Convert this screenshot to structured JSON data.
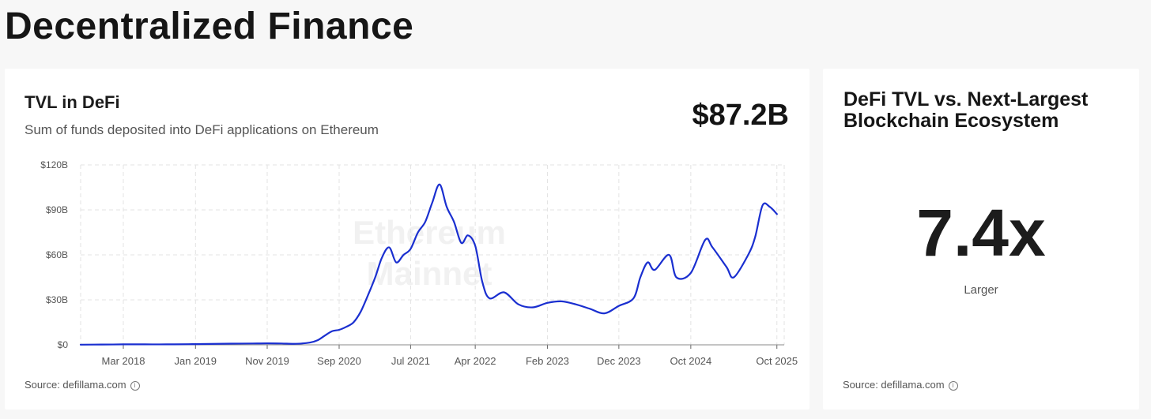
{
  "page": {
    "title": "Decentralized Finance"
  },
  "main_card": {
    "title": "TVL in DeFi",
    "subtitle": "Sum of funds deposited into DeFi applications on Ethereum",
    "value": "$87.2B",
    "watermark": [
      "Ethereum",
      "Mainnet"
    ],
    "source": "Source: defillama.com"
  },
  "side_card": {
    "title": "DeFi TVL vs. Next-Largest Blockchain Ecosystem",
    "value": "7.4x",
    "label": "Larger",
    "source": "Source: defillama.com"
  },
  "colors": {
    "line": "#1a2fd0",
    "grid": "#e3e3e3",
    "tick": "#555555"
  },
  "icons": {
    "info": "info-circle-icon"
  },
  "chart_data": {
    "type": "line",
    "title": "TVL in DeFi",
    "ylabel": "",
    "xlabel": "",
    "ylim": [
      0,
      120
    ],
    "y_ticks": [
      "$0",
      "$30B",
      "$60B",
      "$90B",
      "$120B"
    ],
    "y_tick_values": [
      0,
      30,
      60,
      90,
      120
    ],
    "x_ticks": [
      "Mar 2018",
      "Jan 2019",
      "Nov 2019",
      "Sep 2020",
      "Jul 2021",
      "Apr 2022",
      "Feb 2023",
      "Dec 2023",
      "Oct 2024",
      "Oct 2025"
    ],
    "x_tick_dates": [
      "2018-03",
      "2019-01",
      "2019-11",
      "2020-09",
      "2021-07",
      "2022-04",
      "2023-02",
      "2023-12",
      "2024-10",
      "2025-10"
    ],
    "grid": true,
    "series": [
      {
        "date": [
          "2017-09",
          "2017-12",
          "2018-03",
          "2018-06",
          "2018-09",
          "2018-12",
          "2019-01",
          "2019-03",
          "2019-06",
          "2019-09",
          "2019-11",
          "2020-01",
          "2020-03",
          "2020-05",
          "2020-06",
          "2020-07",
          "2020-08",
          "2020-09",
          "2020-10",
          "2020-11",
          "2020-12",
          "2021-01",
          "2021-02",
          "2021-03",
          "2021-04",
          "2021-05",
          "2021-06",
          "2021-07",
          "2021-08",
          "2021-09",
          "2021-10",
          "2021-11",
          "2021-12",
          "2022-01",
          "2022-02",
          "2022-03",
          "2022-04",
          "2022-05",
          "2022-06",
          "2022-08",
          "2022-10",
          "2022-12",
          "2023-02",
          "2023-04",
          "2023-06",
          "2023-08",
          "2023-10",
          "2023-12",
          "2024-02",
          "2024-03",
          "2024-04",
          "2024-05",
          "2024-07",
          "2024-08",
          "2024-10",
          "2024-12",
          "2025-01",
          "2025-03",
          "2025-04",
          "2025-06",
          "2025-07",
          "2025-08",
          "2025-09",
          "2025-10"
        ],
        "values": [
          0.1,
          0.2,
          0.3,
          0.3,
          0.3,
          0.4,
          0.5,
          0.6,
          0.8,
          0.9,
          1.0,
          0.9,
          0.7,
          1.5,
          3.0,
          6.0,
          9.0,
          10.0,
          12.0,
          15.0,
          22.0,
          33.0,
          45.0,
          58.0,
          65.0,
          55.0,
          60.0,
          64.0,
          75.0,
          82.0,
          95.0,
          107.0,
          92.0,
          82.0,
          68.0,
          73.0,
          66.0,
          42.0,
          31.0,
          35.0,
          27.0,
          25.0,
          28.0,
          29.0,
          27.0,
          24.0,
          21.0,
          26.0,
          31.0,
          45.0,
          55.0,
          50.0,
          60.0,
          45.0,
          48.0,
          70.0,
          65.0,
          52.0,
          45.0,
          60.0,
          72.0,
          93.0,
          92.0,
          87.2
        ]
      }
    ]
  }
}
